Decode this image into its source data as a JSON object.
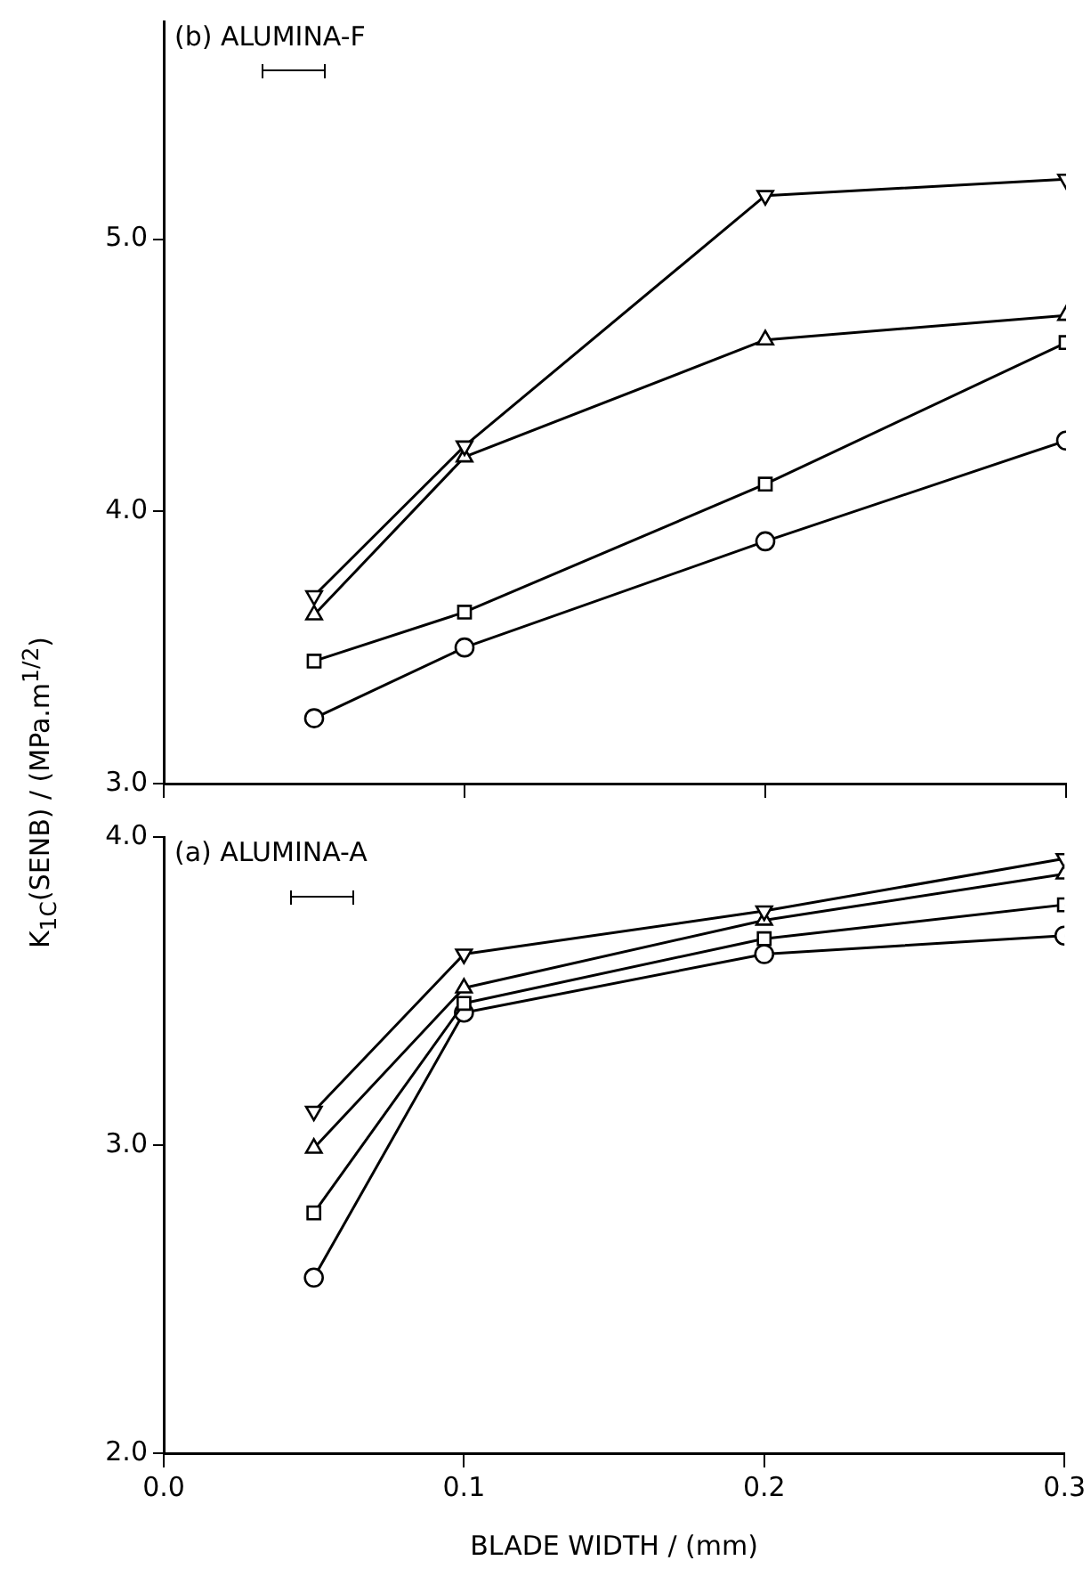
{
  "chart_data": [
    {
      "type": "line",
      "title": "(b) ALUMINA-F",
      "x": [
        0.05,
        0.1,
        0.2,
        0.3
      ],
      "xlim": [
        0,
        0.3
      ],
      "xticks": [
        {
          "value": 0,
          "label": null
        },
        {
          "value": 0.1,
          "label": null
        },
        {
          "value": 0.2,
          "label": null
        },
        {
          "value": 0.3,
          "label": null
        }
      ],
      "ylim": [
        3,
        5.8
      ],
      "yticks": [
        {
          "value": 3,
          "label": "3.0"
        },
        {
          "value": 4,
          "label": "4.0"
        },
        {
          "value": 5,
          "label": "5.0"
        }
      ],
      "tick_labels": "y",
      "grid": false,
      "legend": false,
      "line_style": "solid",
      "series": [
        {
          "color": "#000000",
          "marker": "triangle_down",
          "values": [
            3.69,
            4.24,
            5.16,
            5.22
          ]
        },
        {
          "color": "#000000",
          "marker": "triangle",
          "values": [
            3.62,
            4.2,
            4.63,
            4.72
          ]
        },
        {
          "color": "#000000",
          "marker": "square",
          "values": [
            3.45,
            3.63,
            4.1,
            4.62
          ]
        },
        {
          "color": "#000000",
          "marker": "circle",
          "values": [
            3.24,
            3.5,
            3.89,
            4.26
          ]
        }
      ]
    },
    {
      "type": "line",
      "title": "(a) ALUMINA-A",
      "xlabel": "BLADE WIDTH / (mm)",
      "ylabel": "K$_{1C}$(SENB) / (MPa.m$^{1/2}$)",
      "x": [
        0.05,
        0.1,
        0.2,
        0.3
      ],
      "xlim": [
        0,
        0.3
      ],
      "xticks": [
        {
          "value": 0,
          "label": "0.0"
        },
        {
          "value": 0.1,
          "label": "0.1"
        },
        {
          "value": 0.2,
          "label": "0.2"
        },
        {
          "value": 0.3,
          "label": "0.3"
        }
      ],
      "ylim": [
        2,
        4
      ],
      "yticks": [
        {
          "value": 2,
          "label": "2.0"
        },
        {
          "value": 3,
          "label": "3.0"
        },
        {
          "value": 4,
          "label": "4.0"
        }
      ],
      "grid": false,
      "legend": false,
      "line_style": "solid",
      "series": [
        {
          "color": "#000000",
          "marker": "triangle_down",
          "values": [
            3.11,
            3.62,
            3.76,
            3.93
          ]
        },
        {
          "color": "#000000",
          "marker": "triangle",
          "values": [
            2.99,
            3.51,
            3.73,
            3.88
          ]
        },
        {
          "color": "#000000",
          "marker": "square",
          "values": [
            2.78,
            3.46,
            3.67,
            3.78
          ]
        },
        {
          "color": "#000000",
          "marker": "circle",
          "values": [
            2.57,
            3.43,
            3.62,
            3.68
          ]
        }
      ]
    }
  ]
}
